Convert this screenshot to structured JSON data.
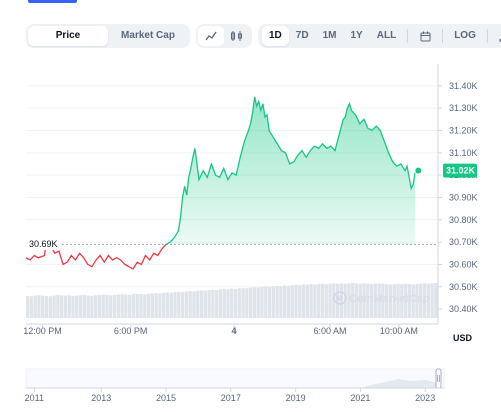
{
  "tabs": {
    "price_label": "Price",
    "marketcap_label": "Market Cap"
  },
  "chart_icons": {
    "line": "line-chart-icon",
    "candle": "candlestick-icon"
  },
  "ranges": [
    "1D",
    "7D",
    "1M",
    "1Y",
    "ALL"
  ],
  "range_active": "1D",
  "calendar_icon": "calendar-icon",
  "log_label": "LOG",
  "download_icon": "download-icon",
  "watermark": "CoinMarketCap",
  "colors": {
    "up": "#16c784",
    "down": "#ea3943",
    "accent": "#3861fb"
  },
  "chart_data": {
    "type": "line",
    "currency_label": "USD",
    "baseline_label": "30.69K",
    "current_price_label": "31.02K",
    "baseline_value": 30690,
    "ylim": [
      30360,
      31480
    ],
    "y_ticks": [
      {
        "label": "31.40K",
        "value": 31400
      },
      {
        "label": "31.30K",
        "value": 31300
      },
      {
        "label": "31.20K",
        "value": 31200
      },
      {
        "label": "31.10K",
        "value": 31100
      },
      {
        "label": "31.00K",
        "value": 31000
      },
      {
        "label": "30.90K",
        "value": 30900
      },
      {
        "label": "30.80K",
        "value": 30800
      },
      {
        "label": "30.70K",
        "value": 30700
      },
      {
        "label": "30.60K",
        "value": 30600
      },
      {
        "label": "30.50K",
        "value": 30500
      },
      {
        "label": "30.40K",
        "value": 30400
      }
    ],
    "xlim": [
      0,
      1
    ],
    "x_ticks": [
      {
        "label": "12:00 PM",
        "x": 0.04
      },
      {
        "label": "6:00 PM",
        "x": 0.254
      },
      {
        "label": "4",
        "x": 0.505
      },
      {
        "label": "6:00 AM",
        "x": 0.738
      },
      {
        "label": "10:00 AM",
        "x": 0.905
      }
    ],
    "series": [
      {
        "values": [
          [
            0.0,
            30630
          ],
          [
            0.01,
            30620
          ],
          [
            0.02,
            30640
          ],
          [
            0.03,
            30630
          ],
          [
            0.045,
            30640
          ],
          [
            0.05,
            30720
          ],
          [
            0.055,
            30690
          ],
          [
            0.06,
            30680
          ],
          [
            0.07,
            30650
          ],
          [
            0.08,
            30660
          ],
          [
            0.09,
            30600
          ],
          [
            0.1,
            30610
          ],
          [
            0.11,
            30640
          ],
          [
            0.12,
            30620
          ],
          [
            0.13,
            30650
          ],
          [
            0.14,
            30630
          ],
          [
            0.15,
            30600
          ],
          [
            0.16,
            30590
          ],
          [
            0.17,
            30620
          ],
          [
            0.18,
            30640
          ],
          [
            0.19,
            30610
          ],
          [
            0.2,
            30640
          ],
          [
            0.21,
            30620
          ],
          [
            0.22,
            30630
          ],
          [
            0.23,
            30620
          ],
          [
            0.24,
            30600
          ],
          [
            0.25,
            30590
          ],
          [
            0.26,
            30580
          ],
          [
            0.27,
            30610
          ],
          [
            0.28,
            30600
          ],
          [
            0.29,
            30640
          ],
          [
            0.3,
            30620
          ],
          [
            0.31,
            30650
          ],
          [
            0.32,
            30640
          ],
          [
            0.33,
            30670
          ],
          [
            0.34,
            30690
          ],
          [
            0.35,
            30700
          ],
          [
            0.36,
            30720
          ],
          [
            0.37,
            30750
          ],
          [
            0.375,
            30810
          ],
          [
            0.38,
            30900
          ],
          [
            0.385,
            30950
          ],
          [
            0.39,
            30910
          ],
          [
            0.395,
            30990
          ],
          [
            0.4,
            31030
          ],
          [
            0.405,
            31080
          ],
          [
            0.41,
            31120
          ],
          [
            0.415,
            31050
          ],
          [
            0.42,
            30980
          ],
          [
            0.43,
            31020
          ],
          [
            0.44,
            30990
          ],
          [
            0.45,
            31050
          ],
          [
            0.46,
            31000
          ],
          [
            0.47,
            30990
          ],
          [
            0.48,
            31030
          ],
          [
            0.49,
            30980
          ],
          [
            0.5,
            31010
          ],
          [
            0.51,
            31000
          ],
          [
            0.52,
            31080
          ],
          [
            0.53,
            31150
          ],
          [
            0.54,
            31200
          ],
          [
            0.545,
            31230
          ],
          [
            0.55,
            31280
          ],
          [
            0.555,
            31350
          ],
          [
            0.56,
            31310
          ],
          [
            0.565,
            31330
          ],
          [
            0.57,
            31290
          ],
          [
            0.575,
            31320
          ],
          [
            0.58,
            31260
          ],
          [
            0.585,
            31270
          ],
          [
            0.59,
            31200
          ],
          [
            0.6,
            31170
          ],
          [
            0.61,
            31140
          ],
          [
            0.62,
            31110
          ],
          [
            0.63,
            31100
          ],
          [
            0.64,
            31050
          ],
          [
            0.65,
            31060
          ],
          [
            0.66,
            31090
          ],
          [
            0.67,
            31110
          ],
          [
            0.68,
            31080
          ],
          [
            0.69,
            31110
          ],
          [
            0.7,
            31130
          ],
          [
            0.71,
            31120
          ],
          [
            0.72,
            31140
          ],
          [
            0.73,
            31120
          ],
          [
            0.74,
            31130
          ],
          [
            0.75,
            31110
          ],
          [
            0.76,
            31180
          ],
          [
            0.77,
            31250
          ],
          [
            0.775,
            31260
          ],
          [
            0.78,
            31300
          ],
          [
            0.785,
            31320
          ],
          [
            0.79,
            31290
          ],
          [
            0.8,
            31270
          ],
          [
            0.81,
            31230
          ],
          [
            0.82,
            31250
          ],
          [
            0.83,
            31210
          ],
          [
            0.84,
            31200
          ],
          [
            0.85,
            31220
          ],
          [
            0.86,
            31200
          ],
          [
            0.87,
            31150
          ],
          [
            0.88,
            31100
          ],
          [
            0.89,
            31060
          ],
          [
            0.9,
            31040
          ],
          [
            0.91,
            31050
          ],
          [
            0.92,
            31020
          ],
          [
            0.925,
            31040
          ],
          [
            0.93,
            30990
          ],
          [
            0.935,
            30940
          ],
          [
            0.94,
            30960
          ],
          [
            0.945,
            31020
          ]
        ]
      }
    ],
    "volume": [
      0.63,
      0.62,
      0.64,
      0.65,
      0.64,
      0.63,
      0.62,
      0.64,
      0.66,
      0.65,
      0.64,
      0.65,
      0.63,
      0.64,
      0.65,
      0.66,
      0.64,
      0.63,
      0.65,
      0.66,
      0.67,
      0.66,
      0.65,
      0.66,
      0.67,
      0.68,
      0.67,
      0.66,
      0.68,
      0.69,
      0.68,
      0.67,
      0.69,
      0.7,
      0.71,
      0.7,
      0.72,
      0.73,
      0.72,
      0.74,
      0.75,
      0.74,
      0.76,
      0.77,
      0.76,
      0.78,
      0.79,
      0.78,
      0.8,
      0.81,
      0.8,
      0.82,
      0.83,
      0.82,
      0.84,
      0.83,
      0.85,
      0.86,
      0.85,
      0.87,
      0.88,
      0.87,
      0.89,
      0.9,
      0.89,
      0.91,
      0.92,
      0.91,
      0.93,
      0.92,
      0.94,
      0.95,
      0.94,
      0.96,
      0.95,
      0.97,
      0.96,
      0.97,
      0.98,
      0.97,
      0.98,
      0.99,
      0.98,
      0.99,
      0.98,
      0.99,
      1.0,
      0.99,
      0.98,
      0.99,
      0.98,
      0.97,
      0.98,
      0.99,
      0.98,
      0.97,
      0.96,
      0.97,
      0.98,
      0.97,
      0.98,
      0.97,
      0.96,
      0.97,
      0.98,
      0.99,
      0.98,
      0.99,
      1.0
    ],
    "navigator": {
      "x_ticks": [
        {
          "label": "2011",
          "x": 0.02
        },
        {
          "label": "2013",
          "x": 0.18
        },
        {
          "label": "2015",
          "x": 0.335
        },
        {
          "label": "2017",
          "x": 0.49
        },
        {
          "label": "2019",
          "x": 0.645
        },
        {
          "label": "2021",
          "x": 0.8
        },
        {
          "label": "2023",
          "x": 0.955
        }
      ]
    }
  }
}
